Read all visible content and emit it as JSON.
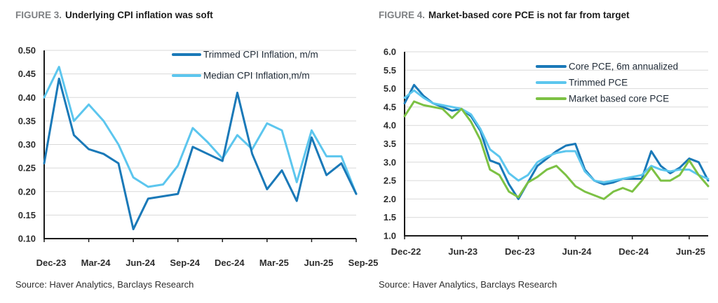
{
  "page": {
    "background": "#ffffff"
  },
  "figure3": {
    "label": "FIGURE 3.",
    "title": "Underlying CPI inflation was soft",
    "source": "Source: Haver Analytics, Barclays Research",
    "chart_data": {
      "type": "line",
      "x": [
        "Dec-23",
        "Jan-24",
        "Feb-24",
        "Mar-24",
        "Apr-24",
        "May-24",
        "Jun-24",
        "Jul-24",
        "Aug-24",
        "Sep-24",
        "Oct-24",
        "Nov-24",
        "Dec-24",
        "Jan-25",
        "Feb-25",
        "Mar-25",
        "Apr-25",
        "May-25",
        "Jun-25",
        "Jul-25",
        "Aug-25",
        "Sep-25"
      ],
      "x_tick_labels": [
        "Dec-23",
        "Mar-24",
        "Jun-24",
        "Sep-24",
        "Dec-24",
        "Mar-25",
        "Jun-25",
        "Sep-25"
      ],
      "ylim": [
        0.1,
        0.5
      ],
      "y_step": 0.05,
      "y_decimals": 2,
      "grid": "horizontal",
      "legend_position": "top-right",
      "series": [
        {
          "name": "Trimmed CPI Inflation, m/m",
          "color": "#1a79b8",
          "values": [
            0.26,
            0.44,
            0.32,
            0.29,
            0.28,
            0.26,
            0.12,
            0.185,
            0.19,
            0.195,
            0.295,
            0.28,
            0.265,
            0.41,
            0.28,
            0.205,
            0.245,
            0.18,
            0.315,
            0.235,
            0.26,
            0.195
          ]
        },
        {
          "name": "Median CPI Inflation,m/m",
          "color": "#5cc6ee",
          "values": [
            0.4,
            0.465,
            0.35,
            0.385,
            0.35,
            0.3,
            0.23,
            0.21,
            0.215,
            0.255,
            0.335,
            0.305,
            0.27,
            0.32,
            0.29,
            0.345,
            0.33,
            0.22,
            0.33,
            0.275,
            0.275,
            0.195
          ]
        }
      ]
    }
  },
  "figure4": {
    "label": "FIGURE 4.",
    "title": "Market-based core PCE is not far from target",
    "source": "Source: Haver Analytics, Barclays Research",
    "chart_data": {
      "type": "line",
      "x": [
        "Dec-22",
        "Jan-23",
        "Feb-23",
        "Mar-23",
        "Apr-23",
        "May-23",
        "Jun-23",
        "Jul-23",
        "Aug-23",
        "Sep-23",
        "Oct-23",
        "Nov-23",
        "Dec-23",
        "Jan-24",
        "Feb-24",
        "Mar-24",
        "Apr-24",
        "May-24",
        "Jun-24",
        "Jul-24",
        "Aug-24",
        "Sep-24",
        "Oct-24",
        "Nov-24",
        "Dec-24",
        "Jan-25",
        "Feb-25",
        "Mar-25",
        "Apr-25",
        "May-25",
        "Jun-25",
        "Jul-25",
        "Aug-25"
      ],
      "x_tick_labels": [
        "Dec-22",
        "Jun-23",
        "Dec-23",
        "Jun-24",
        "Dec-24",
        "Jun-25"
      ],
      "ylim": [
        1.0,
        6.0
      ],
      "y_step": 0.5,
      "y_decimals": 1,
      "grid": "horizontal",
      "legend_position": "top-right",
      "series": [
        {
          "name": "Core PCE, 6m annualized",
          "color": "#1a79b8",
          "values": [
            4.6,
            5.1,
            4.8,
            4.6,
            4.5,
            4.4,
            4.45,
            4.25,
            3.85,
            3.05,
            2.95,
            2.4,
            2.0,
            2.45,
            2.9,
            3.1,
            3.3,
            3.45,
            3.5,
            2.8,
            2.5,
            2.4,
            2.45,
            2.55,
            2.55,
            2.55,
            3.3,
            2.9,
            2.7,
            2.85,
            3.1,
            3.0,
            2.5
          ]
        },
        {
          "name": "Trimmed PCE",
          "color": "#5cc6ee",
          "values": [
            4.75,
            4.95,
            4.75,
            4.6,
            4.55,
            4.5,
            4.45,
            4.3,
            3.9,
            3.35,
            3.15,
            2.7,
            2.5,
            2.65,
            3.0,
            3.15,
            3.25,
            3.3,
            3.3,
            2.75,
            2.5,
            2.45,
            2.5,
            2.55,
            2.6,
            2.65,
            2.9,
            2.8,
            2.75,
            2.8,
            2.8,
            2.65,
            2.55
          ]
        },
        {
          "name": "Market based core PCE",
          "color": "#7cc144",
          "values": [
            4.25,
            4.65,
            4.55,
            4.5,
            4.45,
            4.2,
            4.45,
            4.1,
            3.6,
            2.8,
            2.65,
            2.2,
            2.05,
            2.45,
            2.6,
            2.8,
            2.9,
            2.65,
            2.35,
            2.2,
            2.1,
            2.0,
            2.2,
            2.3,
            2.2,
            2.5,
            2.85,
            2.5,
            2.5,
            2.65,
            3.05,
            2.65,
            2.35
          ]
        }
      ]
    }
  }
}
